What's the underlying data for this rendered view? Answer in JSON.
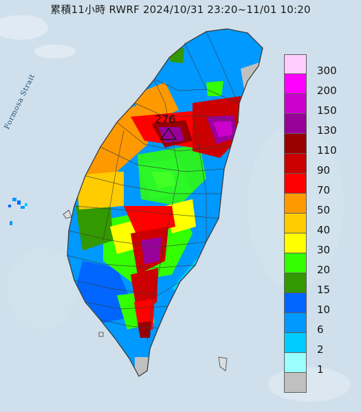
{
  "map_title": "累積11小時 RWRF 2024/10/31 23:20~11/01 10:20",
  "water_label": "Formosa Strait",
  "max_value_label": "276",
  "colors": {
    "sea": "#cfe0ec",
    "sea_cloud": "#eef3f8",
    "land_base": "#d9dde0",
    "boundary": "#3b3b3b"
  },
  "legend": {
    "items": [
      {
        "label": "300",
        "color": "#ffccff"
      },
      {
        "label": "200",
        "color": "#ff00ff"
      },
      {
        "label": "150",
        "color": "#cc00cc"
      },
      {
        "label": "130",
        "color": "#990099"
      },
      {
        "label": "110",
        "color": "#990000"
      },
      {
        "label": "90",
        "color": "#cc0000"
      },
      {
        "label": "70",
        "color": "#ff0000"
      },
      {
        "label": "50",
        "color": "#ff9900"
      },
      {
        "label": "40",
        "color": "#ffcc00"
      },
      {
        "label": "30",
        "color": "#ffff00"
      },
      {
        "label": "20",
        "color": "#33ff00"
      },
      {
        "label": "15",
        "color": "#339900"
      },
      {
        "label": "10",
        "color": "#0066ff"
      },
      {
        "label": "6",
        "color": "#0099ff"
      },
      {
        "label": "2",
        "color": "#00ccff"
      },
      {
        "label": "1",
        "color": "#99ffff"
      },
      {
        "label": "",
        "color": "#c0c0c0"
      }
    ]
  }
}
